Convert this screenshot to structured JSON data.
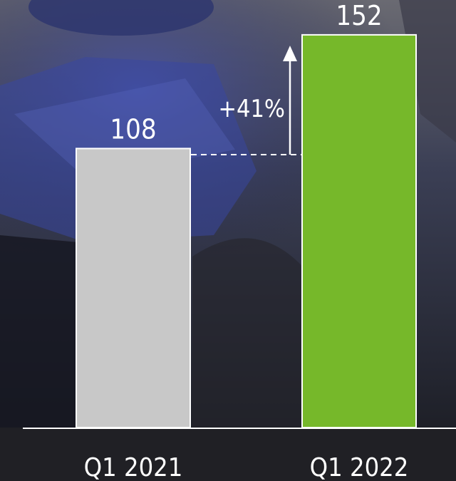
{
  "chart_data": {
    "type": "bar",
    "categories": [
      "Q1 2021",
      "Q1 2022"
    ],
    "values": [
      108,
      152
    ],
    "value_labels": [
      "108",
      "152"
    ],
    "colors": [
      "#c8c8c8",
      "#76b82a"
    ],
    "annotation": "+41%",
    "grid": false,
    "legend": "none",
    "ylim": [
      0,
      155
    ],
    "background": "dark-blue mining machinery photo"
  }
}
